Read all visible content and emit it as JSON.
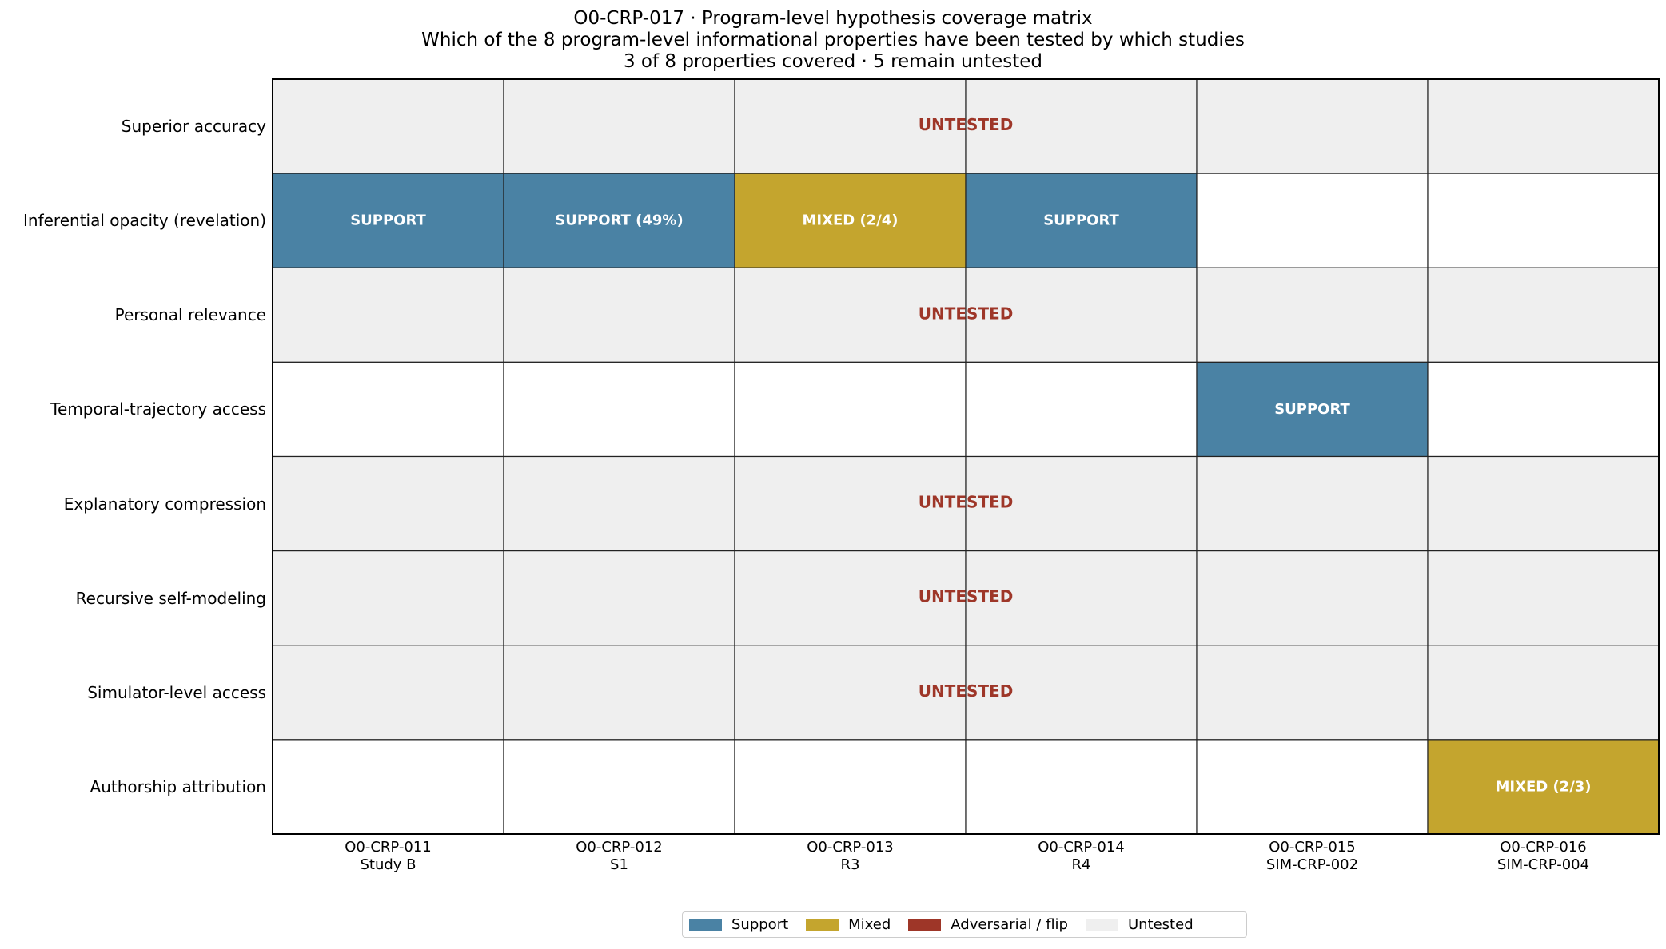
{
  "title": {
    "line1": "O0-CRP-017 · Program-level hypothesis coverage matrix",
    "line2": "Which of the 8 program-level informational properties have been tested by which studies",
    "line3": "3 of 8 properties covered · 5 remain untested"
  },
  "colors": {
    "support": "#4a82a4",
    "mixed": "#c4a52e",
    "adversarial": "#9e3628",
    "untested": "#efefef",
    "empty": "#ffffff",
    "untested_text": "#9e3628",
    "grid": "#222222"
  },
  "legend": [
    {
      "label": "Support",
      "key": "support"
    },
    {
      "label": "Mixed",
      "key": "mixed"
    },
    {
      "label": "Adversarial / flip",
      "key": "adversarial"
    },
    {
      "label": "Untested",
      "key": "untested"
    }
  ],
  "chart_data": {
    "type": "heatmap",
    "rows": [
      "Superior accuracy",
      "Inferential opacity (revelation)",
      "Personal relevance",
      "Temporal-trajectory access",
      "Explanatory compression",
      "Recursive self-modeling",
      "Simulator-level access",
      "Authorship attribution"
    ],
    "columns": [
      {
        "id": "O0-CRP-011",
        "sub": "Study B"
      },
      {
        "id": "O0-CRP-012",
        "sub": "S1"
      },
      {
        "id": "O0-CRP-013",
        "sub": "R3"
      },
      {
        "id": "O0-CRP-014",
        "sub": "R4"
      },
      {
        "id": "O0-CRP-015",
        "sub": "SIM-CRP-002"
      },
      {
        "id": "O0-CRP-016",
        "sub": "SIM-CRP-004"
      }
    ],
    "row_status": [
      "untested",
      "tested",
      "untested",
      "tested",
      "untested",
      "untested",
      "untested",
      "tested"
    ],
    "untested_label": "UNTESTED",
    "cells": [
      {
        "row": 1,
        "col": 0,
        "status": "support",
        "label": "SUPPORT"
      },
      {
        "row": 1,
        "col": 1,
        "status": "support",
        "label": "SUPPORT (49%)"
      },
      {
        "row": 1,
        "col": 2,
        "status": "mixed",
        "label": "MIXED (2/4)"
      },
      {
        "row": 1,
        "col": 3,
        "status": "support",
        "label": "SUPPORT"
      },
      {
        "row": 3,
        "col": 4,
        "status": "support",
        "label": "SUPPORT"
      },
      {
        "row": 7,
        "col": 5,
        "status": "mixed",
        "label": "MIXED (2/3)"
      }
    ]
  }
}
